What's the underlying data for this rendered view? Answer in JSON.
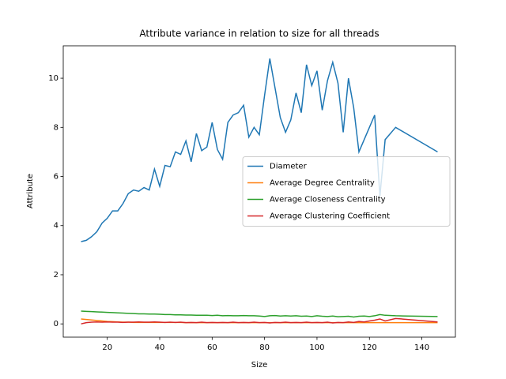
{
  "chart_data": {
    "type": "line",
    "title": "Attribute variance in relation to size for all threads",
    "x_label": "Size",
    "y_label": "Attribute",
    "x": [
      10,
      12,
      14,
      16,
      18,
      20,
      22,
      24,
      26,
      28,
      30,
      32,
      34,
      36,
      38,
      40,
      42,
      44,
      46,
      48,
      50,
      52,
      54,
      56,
      58,
      60,
      62,
      64,
      66,
      68,
      70,
      72,
      74,
      76,
      78,
      80,
      82,
      84,
      86,
      88,
      90,
      92,
      94,
      96,
      98,
      100,
      102,
      104,
      106,
      108,
      110,
      112,
      114,
      116,
      118,
      120,
      122,
      124,
      126,
      130,
      146
    ],
    "series": [
      {
        "name": "Diameter",
        "color": "#1f77b4",
        "values": [
          3.35,
          3.4,
          3.55,
          3.75,
          4.1,
          4.3,
          4.6,
          4.6,
          4.9,
          5.3,
          5.45,
          5.4,
          5.55,
          5.45,
          6.3,
          5.6,
          6.45,
          6.4,
          7.0,
          6.9,
          7.45,
          6.6,
          7.75,
          7.05,
          7.2,
          8.2,
          7.1,
          6.7,
          8.2,
          8.5,
          8.6,
          8.9,
          7.6,
          8.0,
          7.7,
          9.3,
          10.8,
          9.6,
          8.4,
          7.8,
          8.3,
          9.4,
          8.6,
          10.55,
          9.7,
          10.3,
          8.7,
          9.9,
          10.65,
          9.8,
          7.8,
          10.0,
          8.8,
          7.0,
          7.5,
          8.0,
          8.5,
          5.2,
          7.5,
          8.0,
          7.0
        ]
      },
      {
        "name": "Average Degree Centrality",
        "color": "#ff7f0e",
        "values": [
          0.2,
          0.18,
          0.16,
          0.14,
          0.12,
          0.1,
          0.09,
          0.08,
          0.07,
          0.07,
          0.06,
          0.06,
          0.06,
          0.06,
          0.06,
          0.06,
          0.06,
          0.06,
          0.06,
          0.06,
          0.05,
          0.05,
          0.05,
          0.05,
          0.05,
          0.05,
          0.05,
          0.05,
          0.05,
          0.05,
          0.05,
          0.05,
          0.05,
          0.05,
          0.05,
          0.05,
          0.05,
          0.05,
          0.05,
          0.05,
          0.05,
          0.05,
          0.05,
          0.05,
          0.05,
          0.05,
          0.05,
          0.05,
          0.05,
          0.05,
          0.05,
          0.05,
          0.05,
          0.05,
          0.05,
          0.05,
          0.05,
          0.05,
          0.05,
          0.05,
          0.05
        ]
      },
      {
        "name": "Average Closeness Centrality",
        "color": "#2ca02c",
        "values": [
          0.52,
          0.51,
          0.5,
          0.49,
          0.48,
          0.47,
          0.46,
          0.45,
          0.44,
          0.43,
          0.42,
          0.41,
          0.41,
          0.4,
          0.4,
          0.39,
          0.38,
          0.38,
          0.37,
          0.37,
          0.36,
          0.36,
          0.35,
          0.35,
          0.35,
          0.34,
          0.35,
          0.33,
          0.34,
          0.33,
          0.33,
          0.34,
          0.33,
          0.33,
          0.32,
          0.3,
          0.33,
          0.34,
          0.32,
          0.33,
          0.32,
          0.33,
          0.31,
          0.32,
          0.3,
          0.33,
          0.31,
          0.3,
          0.32,
          0.29,
          0.3,
          0.31,
          0.28,
          0.31,
          0.32,
          0.3,
          0.33,
          0.38,
          0.35,
          0.33,
          0.3
        ]
      },
      {
        "name": "Average Clustering Coefficient",
        "color": "#d62728",
        "values": [
          0.0,
          0.05,
          0.07,
          0.08,
          0.07,
          0.08,
          0.07,
          0.07,
          0.06,
          0.07,
          0.07,
          0.08,
          0.07,
          0.07,
          0.08,
          0.07,
          0.06,
          0.07,
          0.06,
          0.07,
          0.05,
          0.06,
          0.05,
          0.07,
          0.05,
          0.06,
          0.05,
          0.06,
          0.05,
          0.07,
          0.05,
          0.06,
          0.05,
          0.07,
          0.05,
          0.06,
          0.04,
          0.06,
          0.05,
          0.07,
          0.05,
          0.06,
          0.05,
          0.07,
          0.05,
          0.06,
          0.05,
          0.07,
          0.04,
          0.06,
          0.05,
          0.08,
          0.06,
          0.1,
          0.08,
          0.12,
          0.15,
          0.2,
          0.12,
          0.22,
          0.08
        ]
      }
    ],
    "xlim": [
      3.2,
      152.8
    ],
    "ylim": [
      -0.54,
      11.32
    ],
    "xticks": [
      20,
      40,
      60,
      80,
      100,
      120,
      140
    ],
    "yticks": [
      0,
      2,
      4,
      6,
      8,
      10
    ],
    "legend": "center right"
  }
}
